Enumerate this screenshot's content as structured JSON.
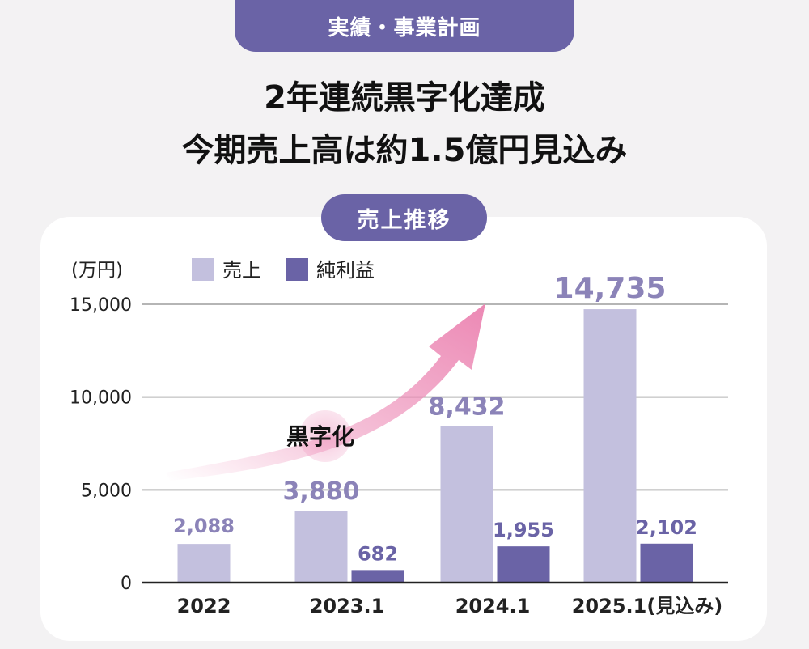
{
  "header": {
    "tab_label": "実績・事業計画",
    "headline_line1": "2年連続黒字化達成",
    "headline_line2": "今期売上高は約1.5億円見込み"
  },
  "chart_pill": "売上推移",
  "colors": {
    "sales": "#c3c0de",
    "profit": "#6a63a6",
    "sales_label": "#8b83b8",
    "arrow": "#ec88b4"
  },
  "chart_data": {
    "type": "bar",
    "title": "売上推移",
    "unit_label": "(万円)",
    "categories": [
      "2022",
      "2023.1",
      "2024.1",
      "2025.1(見込み)"
    ],
    "series": [
      {
        "name": "売上",
        "values": [
          2088,
          3880,
          8432,
          14735
        ]
      },
      {
        "name": "純利益",
        "values": [
          null,
          682,
          1955,
          2102
        ]
      }
    ],
    "data_labels": {
      "売上": [
        "2,088",
        "3,880",
        "8,432",
        "14,735"
      ],
      "純利益": [
        "",
        "682",
        "1,955",
        "2,102"
      ]
    },
    "yticks": [
      0,
      5000,
      10000,
      15000
    ],
    "ytick_labels": [
      "0",
      "5,000",
      "10,000",
      "15,000"
    ],
    "ylim": [
      0,
      15000
    ],
    "grid": true,
    "legend_position": "top-left",
    "annotation": "黒字化"
  }
}
